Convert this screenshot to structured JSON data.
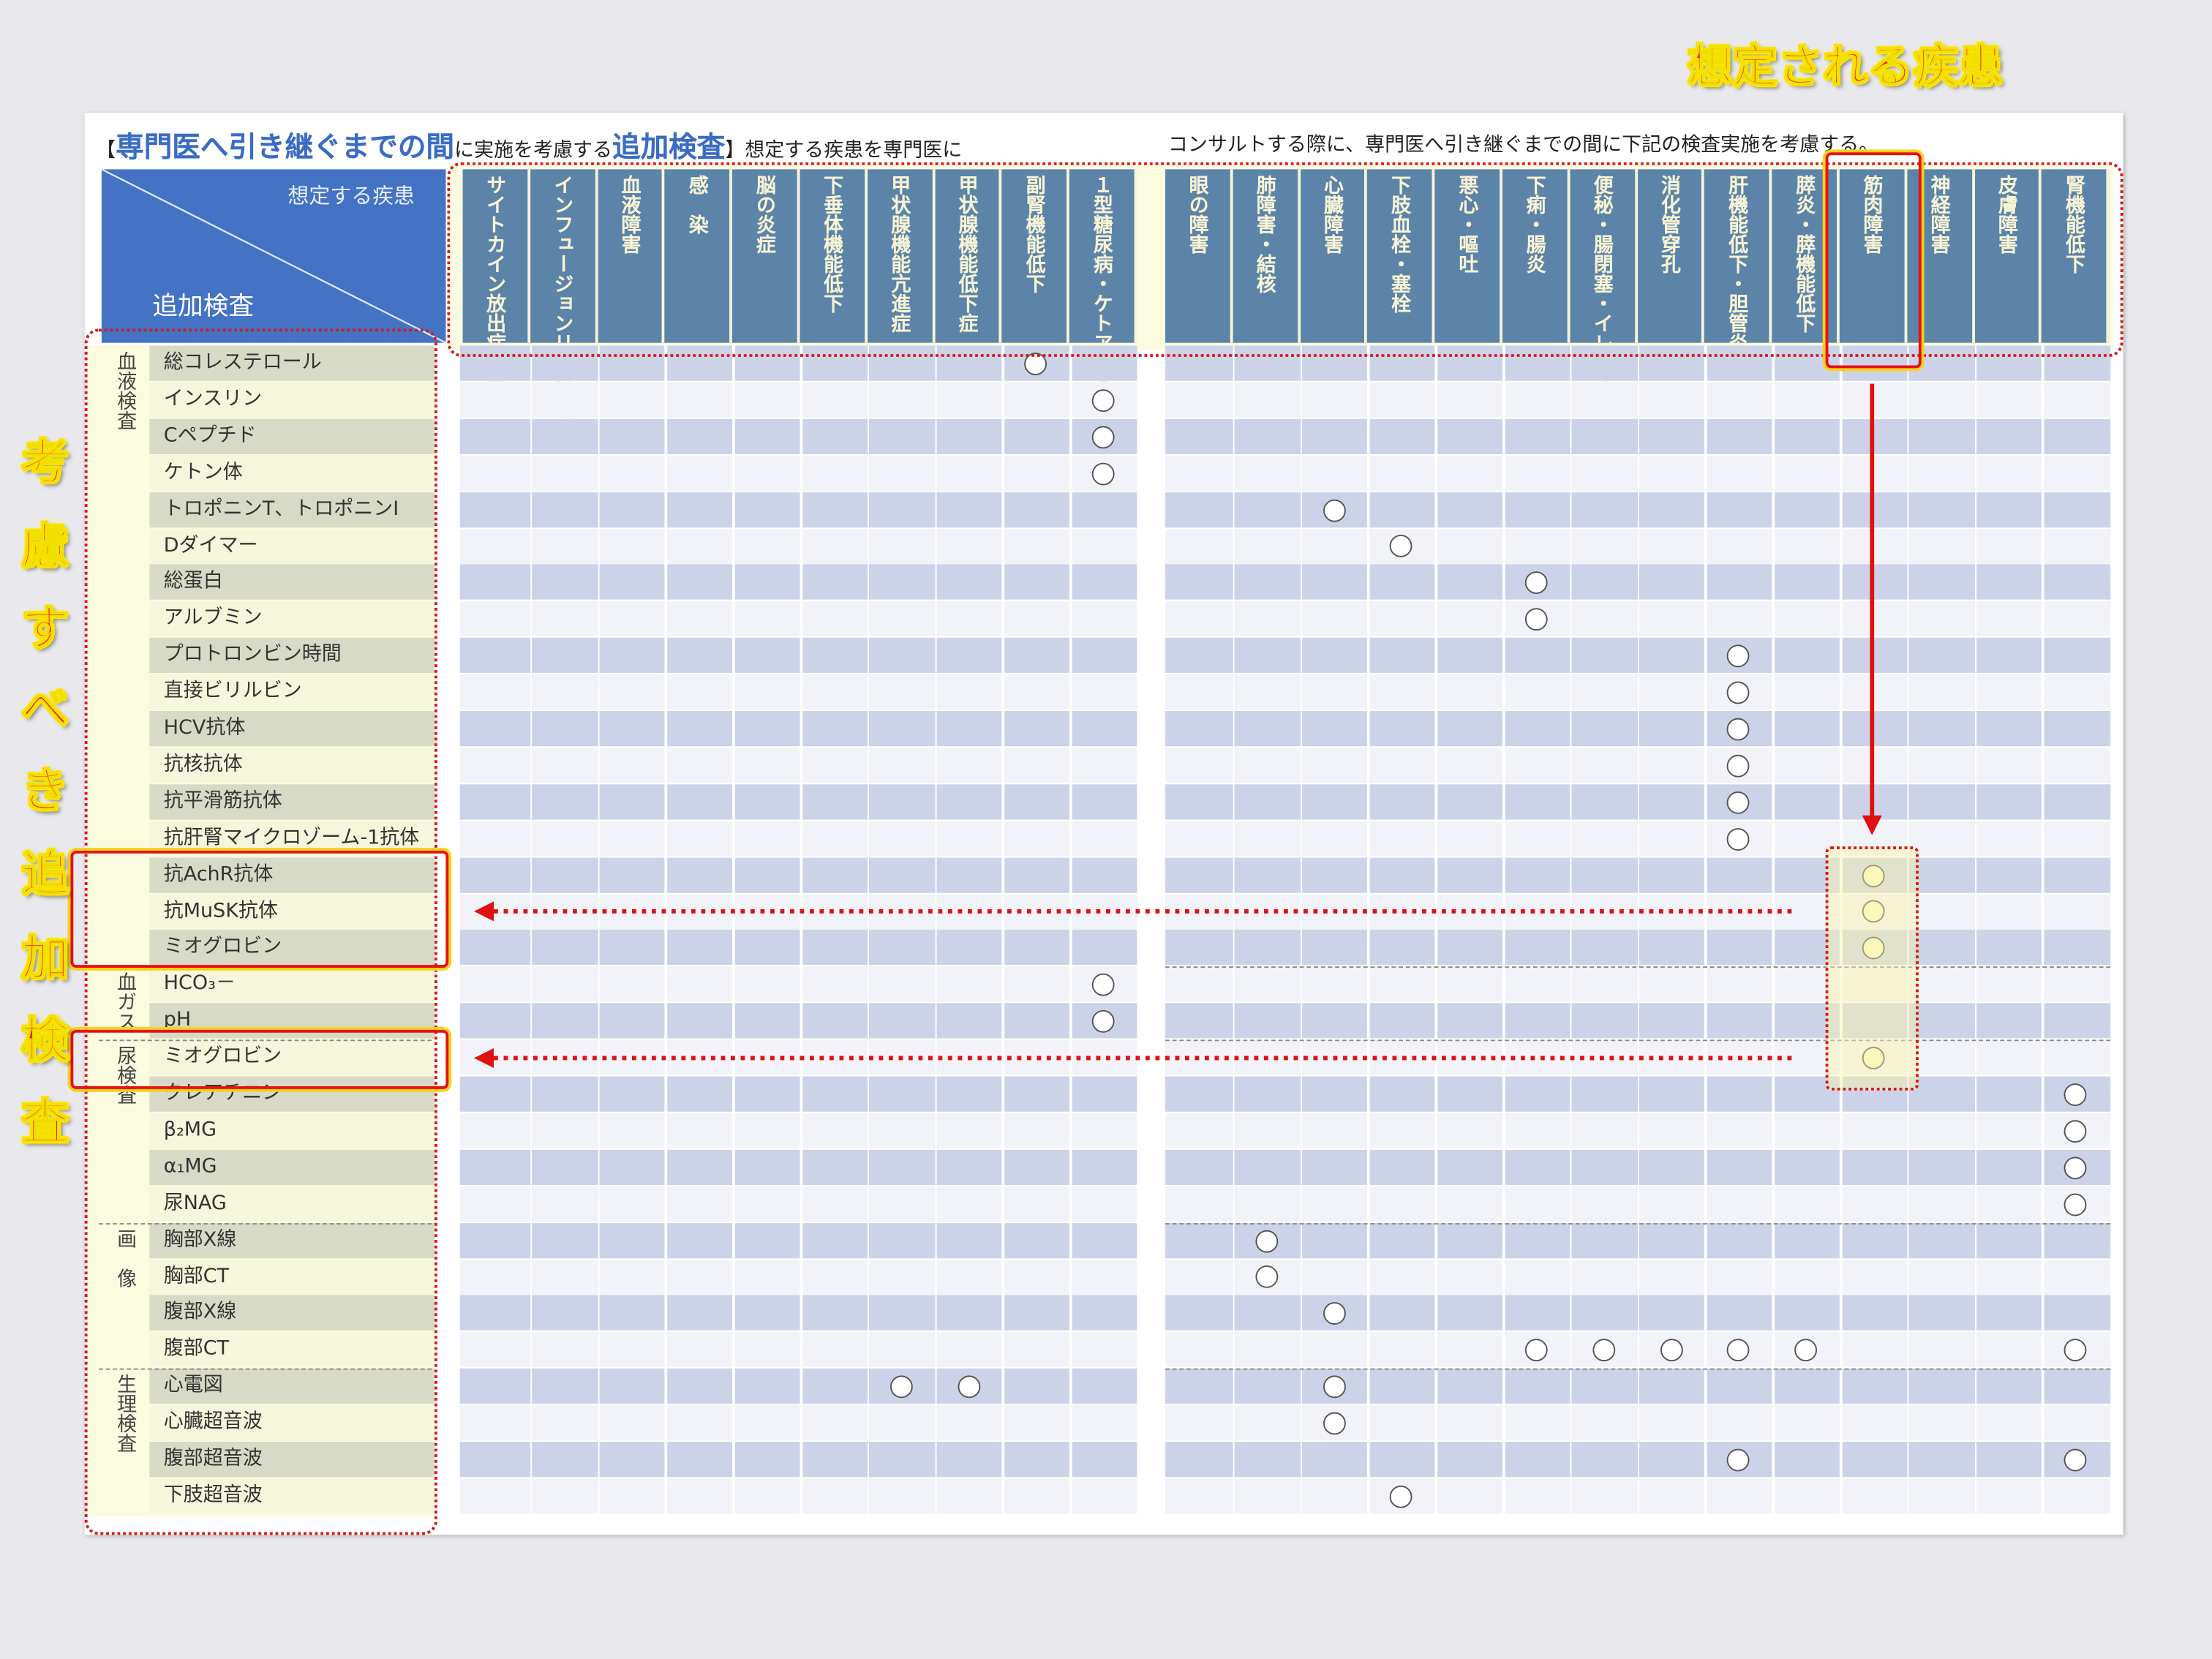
{
  "title": {
    "bracket_open": "【",
    "part1": "専門医へ引き継ぐまでの間",
    "part2": "に実施を考慮する",
    "part3": "追加検査",
    "bracket_close": "】",
    "part4": "想定する疾患を専門医に",
    "line2": "コンサルトする際に、専門医へ引き継ぐまでの間に下記の検査実施を考慮する。"
  },
  "corner": {
    "top_label": "想定する疾患",
    "bottom_label": "追加検査"
  },
  "columns": [
    {
      "lines": [
        "サイトカイン",
        "放出症候群"
      ]
    },
    {
      "lines": [
        "インフュージョン",
        "リアクション"
      ]
    },
    {
      "lines": [
        "血液障害"
      ]
    },
    {
      "lines": [
        "感　染"
      ]
    },
    {
      "lines": [
        "脳の炎症"
      ]
    },
    {
      "lines": [
        "下垂体機能低下"
      ]
    },
    {
      "lines": [
        "甲状腺機能",
        "亢進症"
      ]
    },
    {
      "lines": [
        "甲状腺機能",
        "低下症"
      ]
    },
    {
      "lines": [
        "副腎機能低下"
      ]
    },
    {
      "lines": [
        "１型糖尿病・",
        "ケトアシドーシス"
      ]
    },
    {
      "lines": [
        "眼の障害"
      ]
    },
    {
      "lines": [
        "肺障害・結核"
      ]
    },
    {
      "lines": [
        "心臓障害"
      ]
    },
    {
      "lines": [
        "下肢血栓・塞栓"
      ]
    },
    {
      "lines": [
        "悪心・嘔吐"
      ]
    },
    {
      "lines": [
        "下痢・腸炎"
      ]
    },
    {
      "lines": [
        "便秘・腸閉塞・",
        "イレウス"
      ]
    },
    {
      "lines": [
        "消化管穿孔"
      ]
    },
    {
      "lines": [
        "肝機能低下・",
        "胆管炎"
      ]
    },
    {
      "lines": [
        "膵炎・",
        "膵機能低下"
      ]
    },
    {
      "lines": [
        "筋肉障害"
      ]
    },
    {
      "lines": [
        "神経障害"
      ]
    },
    {
      "lines": [
        "皮膚障害"
      ]
    },
    {
      "lines": [
        "腎機能低下"
      ]
    }
  ],
  "groups": [
    {
      "label": "血液検査",
      "first_row": 0,
      "last_row": 16
    },
    {
      "label": "血ガス",
      "first_row": 17,
      "last_row": 18
    },
    {
      "label": "尿検査",
      "first_row": 19,
      "last_row": 23
    },
    {
      "label": "画　像",
      "first_row": 24,
      "last_row": 27
    },
    {
      "label": "生理検査",
      "first_row": 28,
      "last_row": 31
    }
  ],
  "rows": [
    {
      "label": "総コレステロール",
      "marks": [
        8
      ]
    },
    {
      "label": "インスリン",
      "marks": [
        9
      ]
    },
    {
      "label": "Cペプチド",
      "marks": [
        9
      ]
    },
    {
      "label": "ケトン体",
      "marks": [
        9
      ]
    },
    {
      "label": "トロポニンT、トロポニンI",
      "marks": [
        12
      ]
    },
    {
      "label": "Dダイマー",
      "marks": [
        13
      ]
    },
    {
      "label": "総蛋白",
      "marks": [
        15
      ]
    },
    {
      "label": "アルブミン",
      "marks": [
        15
      ]
    },
    {
      "label": "プロトロンビン時間",
      "marks": [
        18
      ]
    },
    {
      "label": "直接ビリルビン",
      "marks": [
        18
      ]
    },
    {
      "label": "HCV抗体",
      "marks": [
        18
      ]
    },
    {
      "label": "抗核抗体",
      "marks": [
        18
      ]
    },
    {
      "label": "抗平滑筋抗体",
      "marks": [
        18
      ]
    },
    {
      "label": "抗肝腎マイクロゾーム-1抗体",
      "marks": [
        18
      ]
    },
    {
      "label": "抗AchR抗体",
      "marks": [
        20
      ]
    },
    {
      "label": "抗MuSK抗体",
      "marks": [
        20
      ]
    },
    {
      "label": "ミオグロビン",
      "marks": [
        20
      ]
    },
    {
      "label": "HCO₃－",
      "marks": [
        9
      ]
    },
    {
      "label": "pH",
      "marks": [
        9
      ]
    },
    {
      "label": "ミオグロビン",
      "marks": [
        20
      ]
    },
    {
      "label": "クレアチニン",
      "marks": [
        23
      ]
    },
    {
      "label": "β₂MG",
      "marks": [
        23
      ]
    },
    {
      "label": "α₁MG",
      "marks": [
        23
      ]
    },
    {
      "label": "尿NAG",
      "marks": [
        23
      ]
    },
    {
      "label": "胸部X線",
      "marks": [
        11
      ]
    },
    {
      "label": "胸部CT",
      "marks": [
        11
      ]
    },
    {
      "label": "腹部X線",
      "marks": [
        12
      ]
    },
    {
      "label": "腹部CT",
      "marks": [
        15,
        16,
        17,
        18,
        19,
        23
      ]
    },
    {
      "label": "心電図",
      "marks": [
        6,
        7,
        12
      ]
    },
    {
      "label": "心臓超音波",
      "marks": [
        12
      ]
    },
    {
      "label": "腹部超音波",
      "marks": [
        18,
        23
      ]
    },
    {
      "label": "下肢超音波",
      "marks": [
        13
      ]
    }
  ],
  "highlight": {
    "column": 20,
    "rows": [
      14,
      15,
      16,
      19
    ]
  },
  "annotations": {
    "disease_label": "想定される疾患",
    "exam_label_chars": [
      "考",
      "慮",
      "す",
      "べ",
      "き",
      "追",
      "加",
      "検",
      "査"
    ]
  },
  "colors": {
    "header_blue": "#5b84a8",
    "corner_blue": "#4472c4",
    "title_blue": "#3b6cc4",
    "annotation_red": "#ff1010",
    "annotation_yellow": "#f2e000"
  }
}
